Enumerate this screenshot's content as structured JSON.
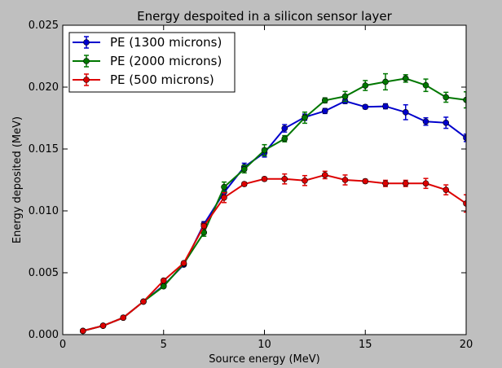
{
  "chart_data": {
    "type": "line",
    "title": "Energy despoited in a silicon sensor layer",
    "xlabel": "Source energy (MeV)",
    "ylabel": "Energy deposited (MeV)",
    "xlim": [
      0,
      20
    ],
    "ylim": [
      0,
      0.025
    ],
    "x_ticks": [
      0,
      5,
      10,
      15,
      20
    ],
    "x_tick_labels": [
      "0",
      "5",
      "10",
      "15",
      "20"
    ],
    "y_ticks": [
      0,
      0.005,
      0.01,
      0.015,
      0.02,
      0.025
    ],
    "y_tick_labels": [
      "0.000",
      "0.005",
      "0.010",
      "0.015",
      "0.020",
      "0.025"
    ],
    "grid": false,
    "legend_position": "top-left",
    "x": [
      1,
      2,
      3,
      4,
      5,
      6,
      7,
      8,
      9,
      10,
      11,
      12,
      13,
      14,
      15,
      16,
      17,
      18,
      19,
      20
    ],
    "series": [
      {
        "name": "PE (1300 microns)",
        "color": "#0000cc",
        "values": [
          0.0003,
          0.00072,
          0.00137,
          0.00267,
          0.00397,
          0.00565,
          0.00893,
          0.0115,
          0.01355,
          0.0147,
          0.01667,
          0.01757,
          0.01807,
          0.01887,
          0.0184,
          0.01845,
          0.01797,
          0.01722,
          0.01712,
          0.0159
        ],
        "errors": [
          5e-05,
          5e-05,
          5e-05,
          5e-05,
          0.0001,
          0.0001,
          0.0002,
          0.0004,
          0.0003,
          0.00035,
          0.0003,
          0.00025,
          0.0002,
          0.0002,
          0.00015,
          0.0002,
          0.0006,
          0.0003,
          0.00045,
          0.0003
        ]
      },
      {
        "name": "PE (2000 microns)",
        "color": "#007700",
        "values": [
          0.0003,
          0.00072,
          0.00137,
          0.00267,
          0.0039,
          0.00573,
          0.00825,
          0.01193,
          0.01337,
          0.0149,
          0.01583,
          0.01753,
          0.01893,
          0.01925,
          0.02013,
          0.02043,
          0.0207,
          0.02015,
          0.01918,
          0.01897
        ],
        "errors": [
          5e-05,
          5e-05,
          5e-05,
          5e-05,
          0.0001,
          0.0001,
          0.0003,
          0.0004,
          0.0003,
          0.00045,
          0.00025,
          0.00045,
          0.0002,
          0.0004,
          0.0004,
          0.00065,
          0.0003,
          0.0005,
          0.0004,
          0.00065
        ]
      },
      {
        "name": "PE (500 microns)",
        "color": "#dd0000",
        "values": [
          0.0003,
          0.00072,
          0.00137,
          0.00267,
          0.00437,
          0.00578,
          0.00878,
          0.01107,
          0.01217,
          0.01258,
          0.01258,
          0.01245,
          0.0129,
          0.0125,
          0.0124,
          0.01222,
          0.01222,
          0.01222,
          0.0117,
          0.0106
        ],
        "errors": [
          5e-05,
          5e-05,
          5e-05,
          5e-05,
          0.0001,
          0.0001,
          0.0002,
          0.0004,
          0.00015,
          0.00015,
          0.0004,
          0.0004,
          0.0003,
          0.0004,
          0.00015,
          0.00025,
          0.00025,
          0.0004,
          0.0004,
          0.0007
        ]
      }
    ]
  }
}
